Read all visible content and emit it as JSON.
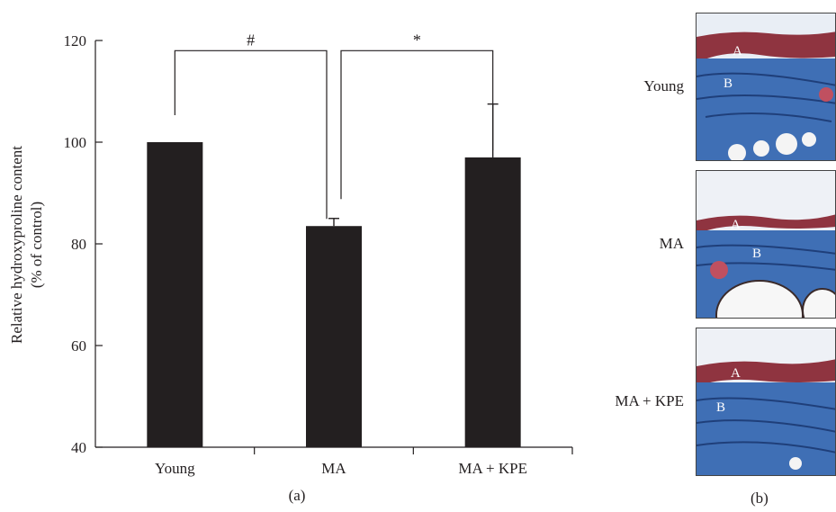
{
  "chart_data": {
    "type": "bar",
    "categories": [
      "Young",
      "MA",
      "MA + KPE"
    ],
    "values": [
      100,
      83.5,
      97
    ],
    "errors": [
      0,
      1.5,
      10.5
    ],
    "ylabel_line1": "Relative hydroxyproline content",
    "ylabel_line2": "(% of control)",
    "ylim": [
      40,
      120
    ],
    "yticks": [
      "40",
      "60",
      "80",
      "100",
      "120"
    ],
    "grid": false,
    "bar_color": "#231f20",
    "significance": [
      {
        "from": "Young",
        "to": "MA",
        "label": "#"
      },
      {
        "from": "MA",
        "to": "MA + KPE",
        "label": "*"
      }
    ],
    "panel_label": "(a)"
  },
  "histology": {
    "panel_label": "(b)",
    "rows": [
      {
        "label": "Young",
        "markers": [
          "A",
          "B"
        ]
      },
      {
        "label": "MA",
        "markers": [
          "A",
          "B"
        ]
      },
      {
        "label": "MA + KPE",
        "markers": [
          "A",
          "B"
        ]
      }
    ],
    "colors": {
      "epidermis": "#8f3440",
      "dermis": "#3f6fb5",
      "background": "#f4f4f4"
    }
  }
}
